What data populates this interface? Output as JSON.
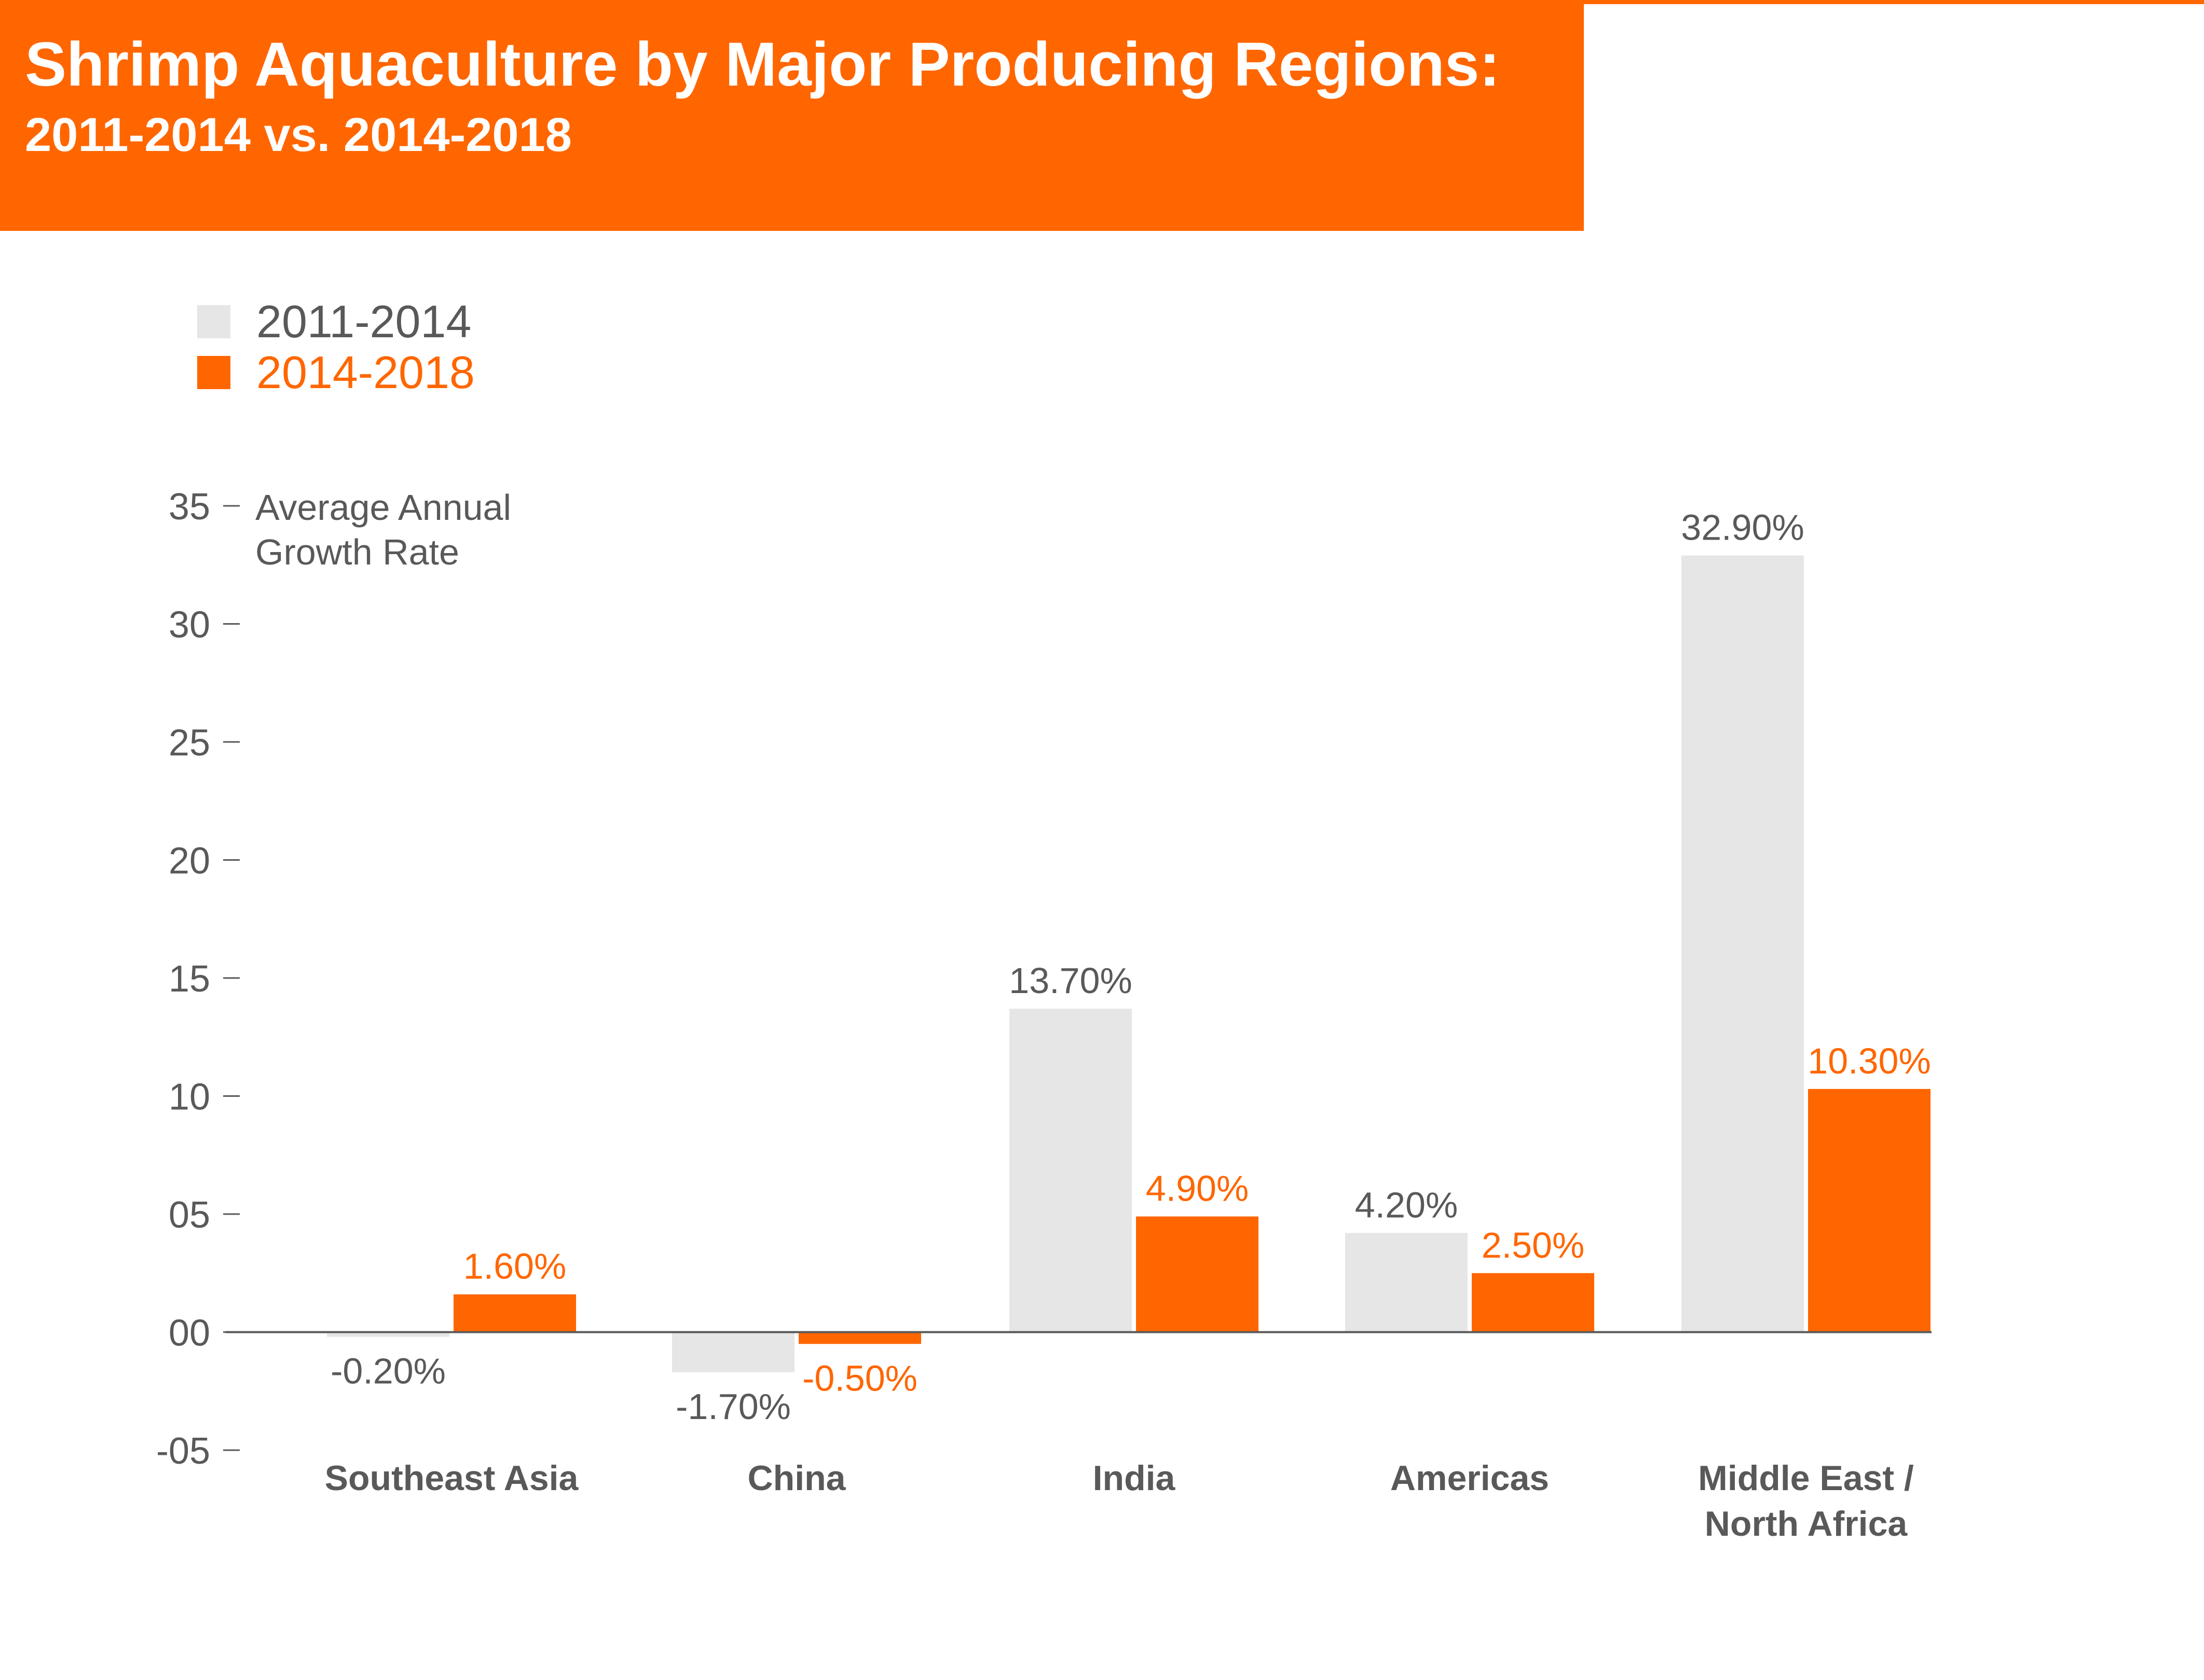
{
  "header": {
    "title": "Shrimp Aquaculture by Major Producing Regions:",
    "subtitle": "2011-2014 vs. 2014-2018"
  },
  "colors": {
    "accent": "#ff6600",
    "series_2011_2014": "#e6e6e6",
    "series_2014_2018": "#ff6600",
    "axis_text": "#595959",
    "category_text": "#595959",
    "white": "#ffffff"
  },
  "chart_data": {
    "type": "bar",
    "title": "Shrimp Aquaculture by Major Producing Regions:",
    "subtitle": "2011-2014 vs. 2014-2018",
    "ylabel": "Average Annual Growth Rate",
    "xlabel": "",
    "ylim": [
      -5,
      35
    ],
    "yticks": [
      35,
      30,
      25,
      20,
      15,
      10,
      5,
      0,
      -5
    ],
    "ytick_labels": [
      "35",
      "30",
      "25",
      "20",
      "15",
      "10",
      "05",
      "00",
      "-05"
    ],
    "categories": [
      "Southeast Asia",
      "China",
      "India",
      "Americas",
      "Middle East / North Africa"
    ],
    "category_lines": [
      [
        "Southeast Asia"
      ],
      [
        "China"
      ],
      [
        "India"
      ],
      [
        "Americas"
      ],
      [
        "Middle East /",
        "North Africa"
      ]
    ],
    "series": [
      {
        "name": "2011-2014",
        "values": [
          -0.2,
          -1.7,
          13.7,
          4.2,
          32.9
        ],
        "labels": [
          "-0.20%",
          "-1.70%",
          "13.70%",
          "4.20%",
          "32.90%"
        ]
      },
      {
        "name": "2014-2018",
        "values": [
          1.6,
          -0.5,
          4.9,
          2.5,
          10.3
        ],
        "labels": [
          "1.60%",
          "-0.50%",
          "4.90%",
          "2.50%",
          "10.30%"
        ]
      }
    ],
    "legend_position": "top-left",
    "grid": false
  }
}
